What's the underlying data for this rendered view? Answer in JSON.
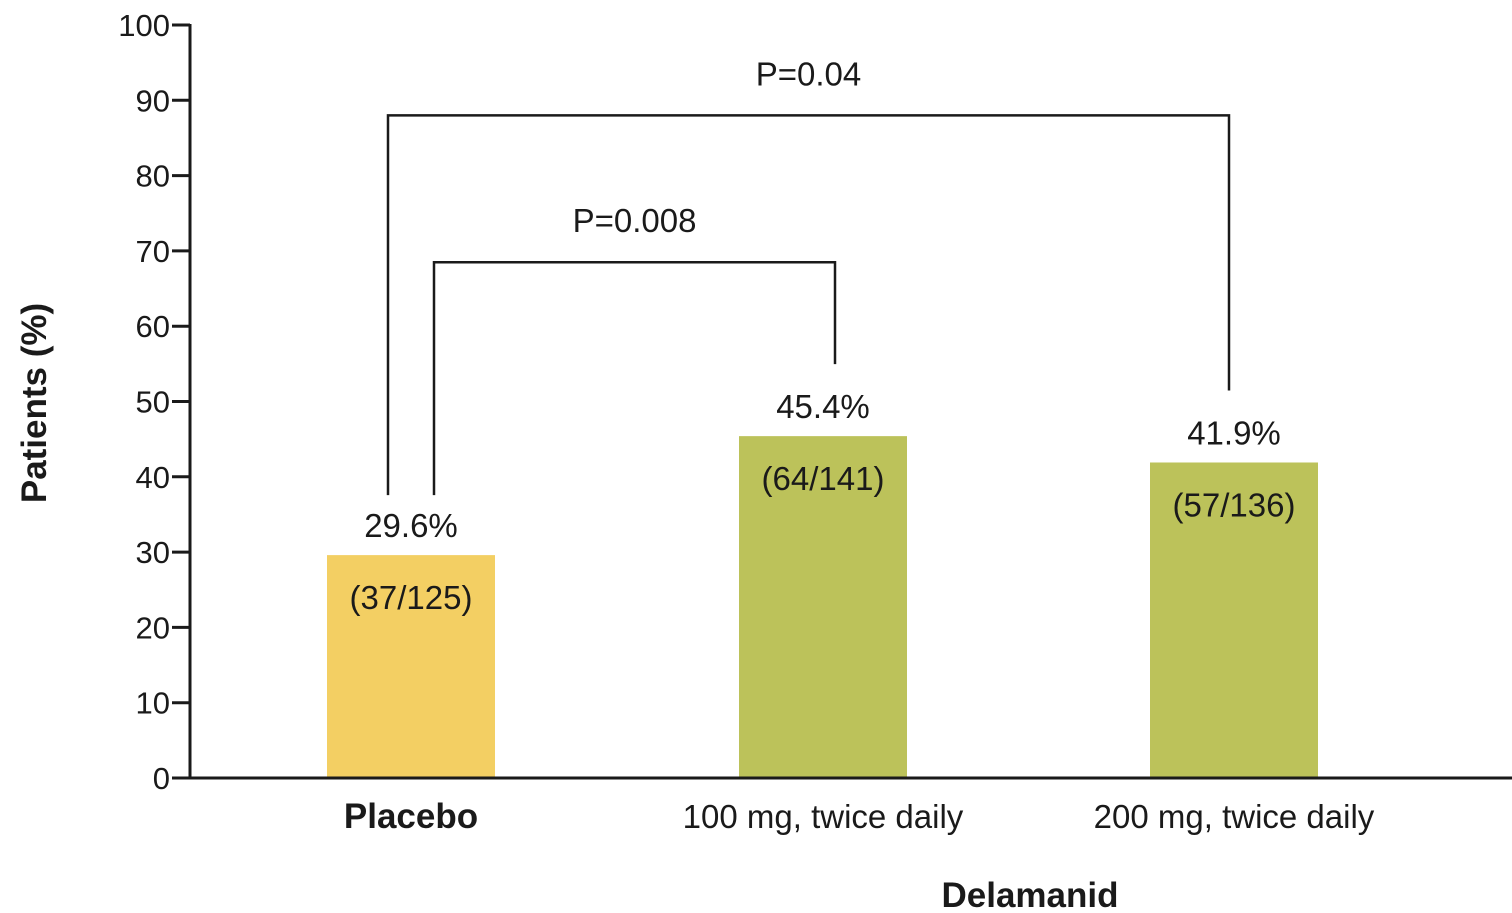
{
  "chart_data": {
    "type": "bar",
    "categories": [
      "Placebo",
      "100 mg, twice daily",
      "200 mg, twice daily"
    ],
    "values": [
      29.6,
      45.4,
      41.9
    ],
    "value_labels": [
      "29.6%",
      "45.4%",
      "41.9%"
    ],
    "count_labels": [
      "(37/125)",
      "(64/141)",
      "(57/136)"
    ],
    "bar_colors": [
      "#f3cf63",
      "#bcc25a",
      "#bcc25a"
    ],
    "category_bold": [
      true,
      false,
      false
    ],
    "ylabel": "Patients (%)",
    "xlabel": "Delamanid",
    "ylim": [
      0,
      100
    ],
    "yticks": [
      0,
      10,
      20,
      30,
      40,
      50,
      60,
      70,
      80,
      90,
      100
    ],
    "grid": false,
    "comparisons": [
      {
        "label": "P=0.04",
        "from": 0,
        "to": 2,
        "bracket_y": 88
      },
      {
        "label": "P=0.008",
        "from": 0,
        "to": 1,
        "bracket_y": 68.5
      }
    ]
  }
}
